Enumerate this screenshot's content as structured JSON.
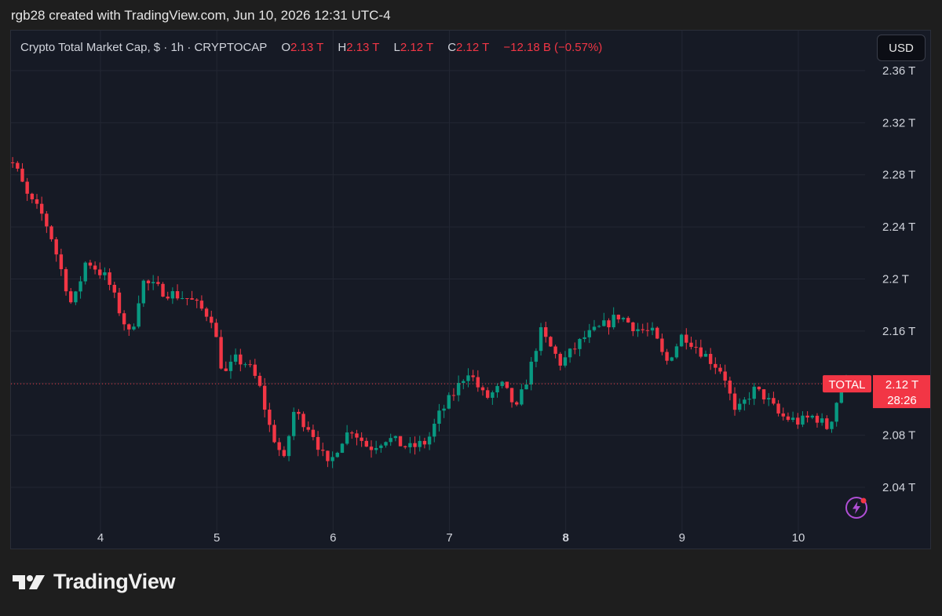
{
  "attribution": "rgb28 created with TradingView.com, Jun 10, 2026 12:31 UTC-4",
  "legend": {
    "symbol": "Crypto Total Market Cap, $ · 1h · CRYPTOCAP",
    "o_label": "O",
    "o_value": "2.13 T",
    "h_label": "H",
    "h_value": "2.13 T",
    "l_label": "L",
    "l_value": "2.12 T",
    "c_label": "C",
    "c_value": "2.12 T",
    "change": "−12.18 B (−0.57%)"
  },
  "currency_button": "USD",
  "price_tag": {
    "label": "TOTAL",
    "price": "2.12 T",
    "countdown": "28:26"
  },
  "logo_text": "TradingView",
  "colors": {
    "up": "#089981",
    "down": "#f23645",
    "background": "#161a25",
    "grid": "#232733",
    "axis_text": "#d1d4dc"
  },
  "icons": [
    "tradingview-logo-icon",
    "lightning-icon"
  ],
  "chart_data": {
    "type": "candlestick",
    "title": "Crypto Total Market Cap, $ · 1h · CRYPTOCAP",
    "interval": "1h",
    "unit": "T USD",
    "ylim": [
      2.005,
      2.37
    ],
    "y_ticks": [
      2.04,
      2.08,
      2.12,
      2.16,
      2.2,
      2.24,
      2.28,
      2.32,
      2.36
    ],
    "y_tick_labels": [
      "2.04 T",
      "2.08 T",
      "2.12 T",
      "2.16 T",
      "2.2 T",
      "2.24 T",
      "2.28 T",
      "2.32 T",
      "2.36 T"
    ],
    "x_ticks": [
      "4",
      "5",
      "6",
      "7",
      "8",
      "9",
      "10"
    ],
    "x_tick_values": [
      4,
      5,
      6,
      7,
      8,
      9,
      10
    ],
    "bold_x_tick": "8",
    "xlim": [
      3.1,
      10.95
    ],
    "grid": true,
    "last_price": 2.1195,
    "anchors": [
      {
        "x": 3.12,
        "y": 2.298
      },
      {
        "x": 3.3,
        "y": 2.288
      },
      {
        "x": 3.42,
        "y": 2.262
      },
      {
        "x": 3.55,
        "y": 2.248
      },
      {
        "x": 3.62,
        "y": 2.232
      },
      {
        "x": 3.7,
        "y": 2.208
      },
      {
        "x": 3.8,
        "y": 2.178
      },
      {
        "x": 3.92,
        "y": 2.215
      },
      {
        "x": 4.1,
        "y": 2.2
      },
      {
        "x": 4.22,
        "y": 2.172
      },
      {
        "x": 4.3,
        "y": 2.155
      },
      {
        "x": 4.4,
        "y": 2.198
      },
      {
        "x": 4.6,
        "y": 2.19
      },
      {
        "x": 4.8,
        "y": 2.185
      },
      {
        "x": 5.0,
        "y": 2.17
      },
      {
        "x": 5.1,
        "y": 2.125
      },
      {
        "x": 5.2,
        "y": 2.138
      },
      {
        "x": 5.3,
        "y": 2.135
      },
      {
        "x": 5.4,
        "y": 2.12
      },
      {
        "x": 5.5,
        "y": 2.085
      },
      {
        "x": 5.62,
        "y": 2.06
      },
      {
        "x": 5.7,
        "y": 2.098
      },
      {
        "x": 5.85,
        "y": 2.085
      },
      {
        "x": 6.0,
        "y": 2.055
      },
      {
        "x": 6.1,
        "y": 2.075
      },
      {
        "x": 6.2,
        "y": 2.085
      },
      {
        "x": 6.35,
        "y": 2.07
      },
      {
        "x": 6.5,
        "y": 2.078
      },
      {
        "x": 6.7,
        "y": 2.07
      },
      {
        "x": 6.85,
        "y": 2.075
      },
      {
        "x": 6.95,
        "y": 2.095
      },
      {
        "x": 7.1,
        "y": 2.115
      },
      {
        "x": 7.2,
        "y": 2.13
      },
      {
        "x": 7.35,
        "y": 2.108
      },
      {
        "x": 7.5,
        "y": 2.118
      },
      {
        "x": 7.62,
        "y": 2.1
      },
      {
        "x": 7.75,
        "y": 2.135
      },
      {
        "x": 7.82,
        "y": 2.16
      },
      {
        "x": 8.0,
        "y": 2.135
      },
      {
        "x": 8.2,
        "y": 2.155
      },
      {
        "x": 8.35,
        "y": 2.163
      },
      {
        "x": 8.5,
        "y": 2.172
      },
      {
        "x": 8.65,
        "y": 2.162
      },
      {
        "x": 8.8,
        "y": 2.158
      },
      {
        "x": 8.9,
        "y": 2.135
      },
      {
        "x": 9.05,
        "y": 2.158
      },
      {
        "x": 9.2,
        "y": 2.145
      },
      {
        "x": 9.4,
        "y": 2.128
      },
      {
        "x": 9.5,
        "y": 2.095
      },
      {
        "x": 9.65,
        "y": 2.115
      },
      {
        "x": 9.75,
        "y": 2.11
      },
      {
        "x": 9.88,
        "y": 2.095
      },
      {
        "x": 10.05,
        "y": 2.09
      },
      {
        "x": 10.18,
        "y": 2.095
      },
      {
        "x": 10.3,
        "y": 2.085
      },
      {
        "x": 10.4,
        "y": 2.115
      },
      {
        "x": 10.48,
        "y": 2.125
      },
      {
        "x": 10.52,
        "y": 2.1195
      }
    ]
  }
}
